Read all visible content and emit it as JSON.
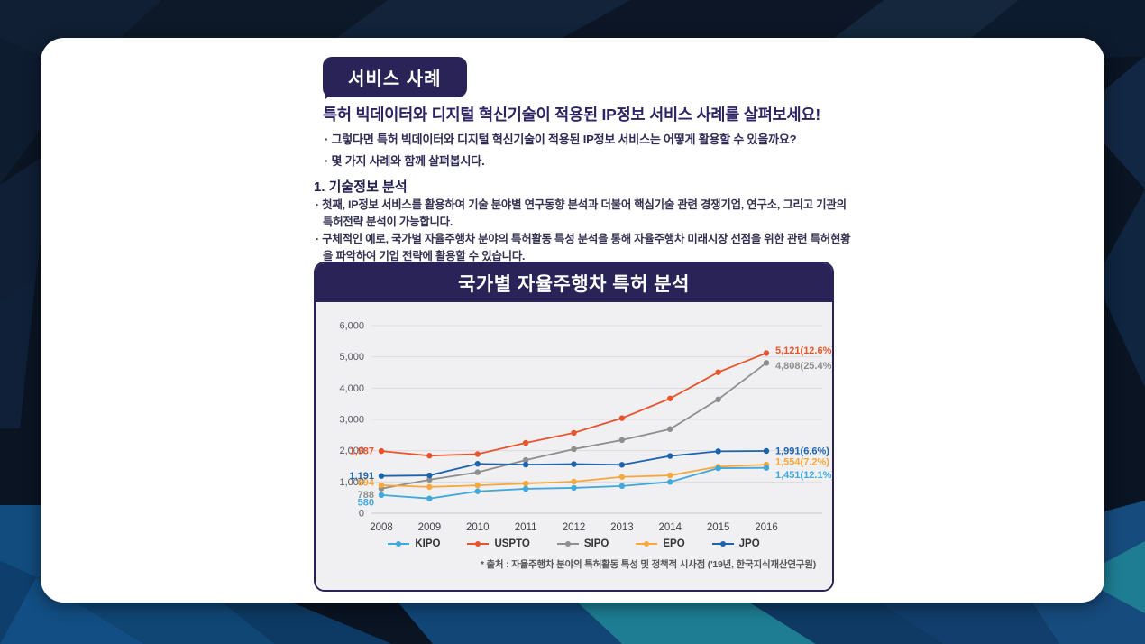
{
  "page": {
    "badge_label": "서비스 사례",
    "headline": "특허 빅데이터와 디지털 혁신기술이 적용된 IP정보 서비스 사례를 살펴보세요!",
    "intro_bullets": [
      "· 그렇다면 특허 빅데이터와 디지털 혁신기술이 적용된 IP정보 서비스는 어떻게 활용할 수 있을까요?",
      "· 몇 가지 사례와 함께 살펴봅시다."
    ],
    "section_title": "1. 기술정보 분석",
    "section_bullets": [
      "· 첫째, IP정보 서비스를 활용하여 기술 분야별 연구동향 분석과 더불어 핵심기술 관련 경쟁기업, 연구소, 그리고 기관의 특허전략 분석이 가능합니다.",
      "· 구체적인 예로, 국가별 자율주행차 분야의 특허활동 특성 분석을 통해 자율주행차 미래시장 선점을 위한 관련 특허현황을 파악하여 기업 전략에 활용할 수 있습니다."
    ]
  },
  "chart": {
    "title": "국가별 자율주행차 특허 분석",
    "footnote": "* 출처 : 자율주행차 분야의 특허활동 특성 및 정책적 시사점 ('19년, 한국지식재산연구원)"
  },
  "chart_data": {
    "type": "line",
    "title": "국가별 자율주행차 특허 분석",
    "x": [
      2008,
      2009,
      2010,
      2011,
      2012,
      2013,
      2014,
      2015,
      2016
    ],
    "ylim": [
      0,
      6000
    ],
    "yticks": [
      0,
      1000,
      2000,
      3000,
      4000,
      5000,
      6000
    ],
    "grid": true,
    "legend_position": "bottom",
    "series": [
      {
        "name": "KIPO",
        "color": "#3FA9DC",
        "values": [
          580,
          470,
          700,
          780,
          810,
          870,
          1000,
          1440,
          1451
        ],
        "start_label": "580",
        "end_label": "1,451(12.1%)"
      },
      {
        "name": "USPTO",
        "color": "#E8542C",
        "values": [
          1987,
          1840,
          1890,
          2250,
          2570,
          3040,
          3670,
          4510,
          5121
        ],
        "start_label": "1,987",
        "end_label": "5,121(12.6%)"
      },
      {
        "name": "SIPO",
        "color": "#8E8E8E",
        "values": [
          788,
          1070,
          1310,
          1700,
          2050,
          2340,
          2690,
          3640,
          4808
        ],
        "start_label": "788",
        "end_label": "4,808(25.4%)"
      },
      {
        "name": "EPO",
        "color": "#F6A83C",
        "values": [
          894,
          840,
          890,
          950,
          1010,
          1160,
          1210,
          1490,
          1554
        ],
        "start_label": "894",
        "end_label": "1,554(7.2%)"
      },
      {
        "name": "JPO",
        "color": "#1D64AE",
        "values": [
          1191,
          1210,
          1580,
          1555,
          1570,
          1550,
          1830,
          1980,
          1991
        ],
        "start_label": "1,191",
        "end_label": "1,991(6.6%)"
      }
    ]
  },
  "colors": {
    "accent_navy": "#2A2357",
    "headline_text": "#2B2364",
    "card_bg": "#FFFFFF",
    "chart_bg": "#F0EFF1",
    "page_bg": "#0A1422"
  }
}
